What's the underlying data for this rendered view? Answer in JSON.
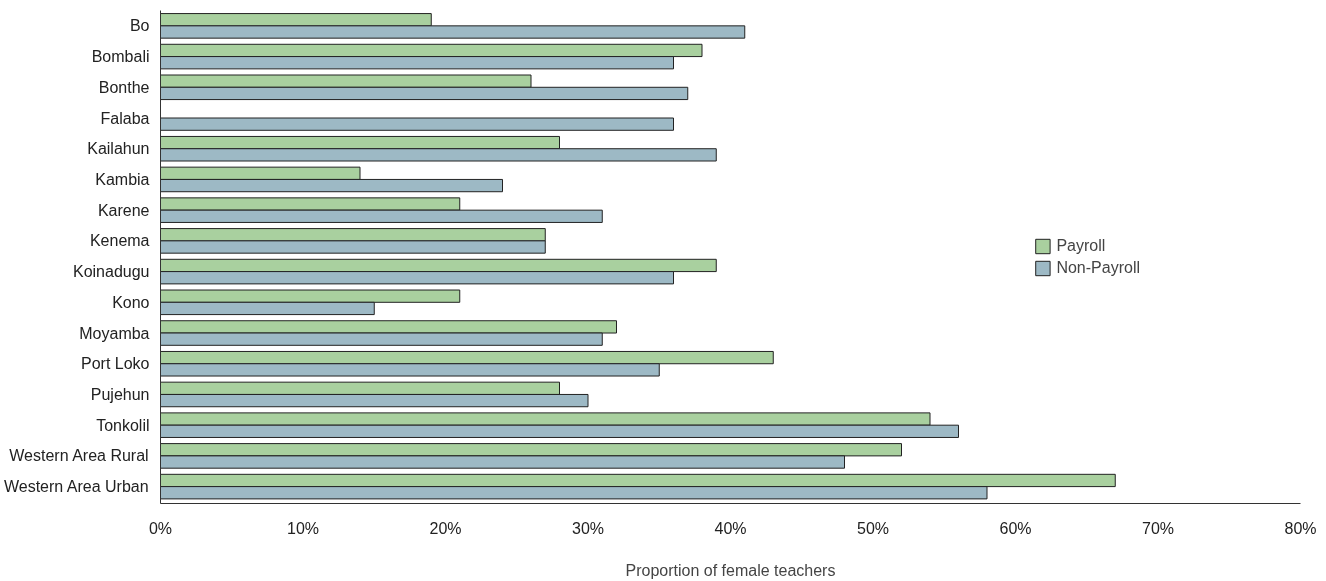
{
  "chart_data": {
    "type": "bar",
    "orientation": "horizontal",
    "xlabel": "Proportion of female teachers",
    "categories": [
      "Bo",
      "Bombali",
      "Bonthe",
      "Falaba",
      "Kailahun",
      "Kambia",
      "Karene",
      "Kenema",
      "Koinadugu",
      "Kono",
      "Moyamba",
      "Port Loko",
      "Pujehun",
      "Tonkolil",
      "Western Area Rural",
      "Western Area Urban"
    ],
    "series": [
      {
        "name": "Payroll",
        "color": "#a9d09f",
        "values": [
          19,
          38,
          26,
          null,
          28,
          14,
          21,
          27,
          39,
          21,
          32,
          43,
          28,
          54,
          52,
          67
        ]
      },
      {
        "name": "Non-Payroll",
        "color": "#9db9c5",
        "values": [
          41,
          36,
          37,
          36,
          39,
          24,
          31,
          27,
          36,
          15,
          31,
          35,
          30,
          56,
          48,
          58
        ]
      }
    ],
    "xlim": [
      0,
      80
    ],
    "xticks": [
      {
        "value": 0,
        "label": "0%"
      },
      {
        "value": 10,
        "label": "10%"
      },
      {
        "value": 20,
        "label": "20%"
      },
      {
        "value": 30,
        "label": "30%"
      },
      {
        "value": 40,
        "label": "40%"
      },
      {
        "value": 50,
        "label": "50%"
      },
      {
        "value": 60,
        "label": "60%"
      },
      {
        "value": 70,
        "label": "70%"
      },
      {
        "value": 80,
        "label": "80%"
      }
    ],
    "grid": false,
    "legend": "right"
  }
}
